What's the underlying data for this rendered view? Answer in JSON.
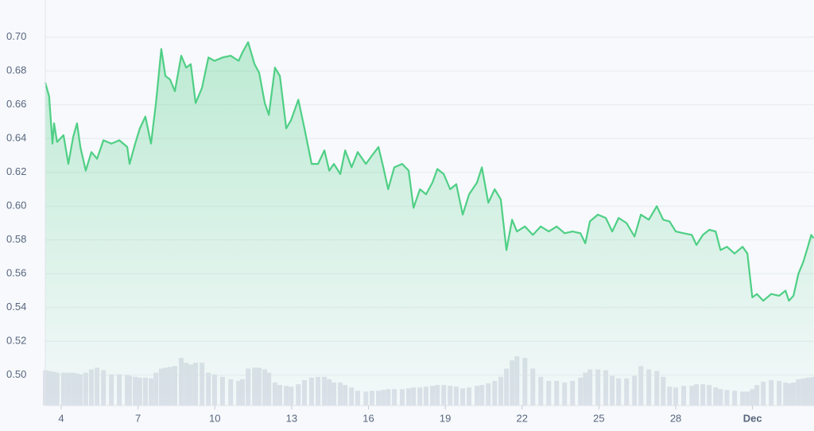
{
  "chart_data": {
    "type": "line",
    "x": [
      3.38,
      3.53,
      3.66,
      3.72,
      3.84,
      4.09,
      4.28,
      4.47,
      4.62,
      4.75,
      4.96,
      5.18,
      5.4,
      5.65,
      5.96,
      6.27,
      6.58,
      6.67,
      6.89,
      7.07,
      7.29,
      7.51,
      7.7,
      7.91,
      8.07,
      8.25,
      8.44,
      8.69,
      8.88,
      9.06,
      9.25,
      9.5,
      9.75,
      9.99,
      10.3,
      10.62,
      10.93,
      11.08,
      11.3,
      11.55,
      11.73,
      11.95,
      12.11,
      12.35,
      12.54,
      12.79,
      12.98,
      13.26,
      13.5,
      13.78,
      14.03,
      14.28,
      14.47,
      14.65,
      14.9,
      15.09,
      15.34,
      15.58,
      15.9,
      16.14,
      16.39,
      16.58,
      16.77,
      17.01,
      17.32,
      17.57,
      17.76,
      18.01,
      18.25,
      18.5,
      18.69,
      18.94,
      19.19,
      19.43,
      19.68,
      19.93,
      20.24,
      20.43,
      20.68,
      20.93,
      21.17,
      21.39,
      21.61,
      21.8,
      22.11,
      22.42,
      22.73,
      23.04,
      23.35,
      23.66,
      23.97,
      24.28,
      24.47,
      24.65,
      24.96,
      25.27,
      25.52,
      25.77,
      26.08,
      26.39,
      26.64,
      26.95,
      27.26,
      27.51,
      27.76,
      28.0,
      28.31,
      28.63,
      28.81,
      29.06,
      29.31,
      29.56,
      29.75,
      30.0,
      30.3,
      30.61,
      30.8,
      30.99,
      31.17,
      31.42,
      31.73,
      32.04,
      32.29,
      32.42,
      32.6,
      32.79,
      32.98,
      33.16,
      33.29,
      33.38
    ],
    "series": [
      {
        "color": "#4fcf85",
        "values": [
          0.673,
          0.665,
          0.637,
          0.649,
          0.638,
          0.642,
          0.625,
          0.641,
          0.649,
          0.635,
          0.621,
          0.632,
          0.628,
          0.639,
          0.637,
          0.639,
          0.635,
          0.625,
          0.637,
          0.646,
          0.653,
          0.637,
          0.661,
          0.693,
          0.677,
          0.675,
          0.668,
          0.689,
          0.682,
          0.684,
          0.661,
          0.67,
          0.688,
          0.686,
          0.688,
          0.689,
          0.686,
          0.691,
          0.697,
          0.684,
          0.679,
          0.661,
          0.654,
          0.682,
          0.677,
          0.646,
          0.651,
          0.663,
          0.646,
          0.625,
          0.625,
          0.633,
          0.621,
          0.625,
          0.619,
          0.633,
          0.623,
          0.632,
          0.625,
          0.63,
          0.635,
          0.623,
          0.61,
          0.623,
          0.625,
          0.621,
          0.599,
          0.61,
          0.607,
          0.614,
          0.622,
          0.619,
          0.61,
          0.613,
          0.595,
          0.607,
          0.614,
          0.623,
          0.602,
          0.61,
          0.604,
          0.574,
          0.592,
          0.585,
          0.588,
          0.583,
          0.588,
          0.585,
          0.588,
          0.584,
          0.585,
          0.584,
          0.578,
          0.591,
          0.595,
          0.593,
          0.585,
          0.593,
          0.59,
          0.582,
          0.595,
          0.592,
          0.6,
          0.592,
          0.591,
          0.585,
          0.584,
          0.583,
          0.577,
          0.583,
          0.586,
          0.585,
          0.574,
          0.576,
          0.572,
          0.576,
          0.572,
          0.546,
          0.548,
          0.544,
          0.548,
          0.547,
          0.55,
          0.544,
          0.547,
          0.56,
          0.567,
          0.576,
          0.583,
          0.581
        ]
      }
    ],
    "volume": {
      "color": "#dde1ea",
      "values": [
        43,
        42,
        41,
        41,
        40,
        40,
        40,
        40,
        39,
        38,
        40,
        44,
        46,
        43,
        38,
        38,
        37,
        36,
        35,
        34,
        34,
        33,
        40,
        45,
        46,
        47,
        48,
        58,
        52,
        50,
        52,
        52,
        40,
        38,
        35,
        32,
        30,
        32,
        45,
        46,
        46,
        44,
        40,
        28,
        25,
        24,
        23,
        26,
        31,
        34,
        35,
        35,
        32,
        28,
        28,
        25,
        22,
        18,
        17,
        18,
        18,
        19,
        20,
        20,
        20,
        21,
        22,
        22,
        23,
        24,
        25,
        25,
        24,
        23,
        21,
        22,
        24,
        25,
        27,
        30,
        35,
        45,
        55,
        60,
        58,
        45,
        35,
        30,
        30,
        28,
        30,
        34,
        40,
        44,
        44,
        43,
        36,
        33,
        33,
        36,
        48,
        44,
        42,
        35,
        23,
        22,
        24,
        24,
        26,
        26,
        25,
        22,
        20,
        19,
        18,
        17,
        17,
        20,
        25,
        29,
        31,
        30,
        28,
        27,
        28,
        32,
        33,
        34,
        34,
        35
      ]
    },
    "xlim": [
      3.38,
      33.4
    ],
    "xticks": [
      4,
      7,
      10,
      13,
      16,
      19,
      22,
      25,
      28,
      {
        "value": 31,
        "label": "Dec"
      }
    ],
    "ylim": [
      0.482,
      0.722
    ],
    "yticks": [
      {
        "value": 0.5,
        "label": "0.50"
      },
      {
        "value": 0.52,
        "label": "0.52"
      },
      {
        "value": 0.54,
        "label": "0.54"
      },
      {
        "value": 0.56,
        "label": "0.56"
      },
      {
        "value": 0.58,
        "label": "0.58"
      },
      {
        "value": 0.6,
        "label": "0.60"
      },
      {
        "value": 0.62,
        "label": "0.62"
      },
      {
        "value": 0.64,
        "label": "0.64"
      },
      {
        "value": 0.66,
        "label": "0.66"
      },
      {
        "value": 0.68,
        "label": "0.68"
      },
      {
        "value": 0.7,
        "label": "0.70"
      }
    ],
    "grid": true
  }
}
